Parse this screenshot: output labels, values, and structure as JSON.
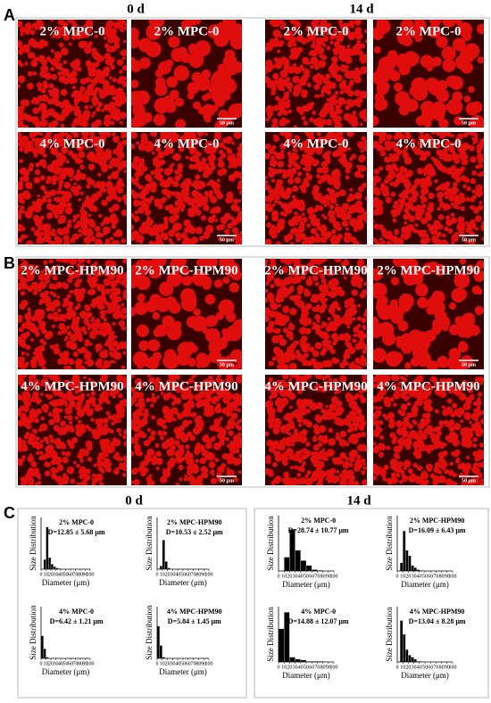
{
  "time_labels": [
    "0 d",
    "14 d"
  ],
  "panels": [
    {
      "letter": "A",
      "images": [
        {
          "label": "2% MPC-0"
        },
        {
          "label": "2% MPC-0",
          "scale": "50 μm"
        },
        {
          "label": "2% MPC-0"
        },
        {
          "label": "2% MPC-0",
          "scale": "50 μm"
        },
        {
          "label": "4% MPC-0"
        },
        {
          "label": "4% MPC-0",
          "scale": "50 μm"
        },
        {
          "label": "4% MPC-0"
        },
        {
          "label": "4% MPC-0",
          "scale": "50 μm"
        }
      ]
    },
    {
      "letter": "B",
      "images": [
        {
          "label": "2% MPC-HPM90"
        },
        {
          "label": "2% MPC-HPM90",
          "scale": "50 μm"
        },
        {
          "label": "2% MPC-HPM90"
        },
        {
          "label": "2% MPC-HPM90",
          "scale": "50 μm"
        },
        {
          "label": "4% MPC-HPM90"
        },
        {
          "label": "4% MPC-HPM90",
          "scale": "50 μm"
        },
        {
          "label": "4% MPC-HPM90"
        },
        {
          "label": "4% MPC-HPM90",
          "scale": "50 μm"
        }
      ]
    },
    {
      "letter": "C"
    }
  ],
  "chart_data": [
    {
      "type": "histogram",
      "title": "2% MPC-0",
      "annotation": "D=12.85 ± 5.68 μm",
      "x_label": "Diameter (μm)",
      "y_label": "Size Distribution",
      "bins": [
        0,
        5,
        10,
        15,
        20,
        25,
        30,
        35,
        40,
        45,
        50,
        55,
        60,
        65,
        70,
        75,
        80,
        85,
        90,
        95,
        100
      ],
      "values": [
        0,
        0.15,
        0.65,
        0.18,
        0.08,
        0.04,
        0.02,
        0.01,
        0,
        0,
        0,
        0,
        0,
        0,
        0,
        0,
        0,
        0,
        0,
        0
      ],
      "xlim": [
        0,
        100
      ],
      "ylim": [
        0,
        0.8
      ],
      "xticks": [
        0,
        10,
        20,
        30,
        40,
        50,
        60,
        70,
        80,
        90,
        100
      ],
      "color": "#000000"
    },
    {
      "type": "histogram",
      "title": "2% MPC-HPM90",
      "annotation": "D=10.53 ± 2.52 μm",
      "x_label": "Diameter (μm)",
      "y_label": "Size Distribution",
      "bins": [
        0,
        5,
        10,
        15,
        20,
        25,
        30,
        35,
        40,
        45,
        50,
        55,
        60,
        65,
        70,
        75,
        80,
        85,
        90,
        95,
        100
      ],
      "values": [
        0,
        0.05,
        0.45,
        0.12,
        0.02,
        0,
        0,
        0,
        0,
        0,
        0,
        0,
        0,
        0,
        0,
        0,
        0,
        0,
        0,
        0
      ],
      "xlim": [
        0,
        100
      ],
      "ylim": [
        0,
        0.8
      ],
      "xticks": [
        0,
        10,
        20,
        30,
        40,
        50,
        60,
        70,
        80,
        90,
        100
      ],
      "color": "#000000"
    },
    {
      "type": "histogram",
      "title": "4% MPC-0",
      "annotation": "D=6.42 ± 1.21 μm",
      "x_label": "Diameter (μm)",
      "y_label": "Size Distribution",
      "bins": [
        0,
        5,
        10,
        15,
        20,
        25,
        30,
        35,
        40,
        45,
        50,
        55,
        60,
        65,
        70,
        75,
        80,
        85,
        90,
        95,
        100
      ],
      "values": [
        0.35,
        0.15,
        0.02,
        0,
        0,
        0,
        0,
        0,
        0,
        0,
        0,
        0,
        0,
        0,
        0,
        0,
        0,
        0,
        0,
        0
      ],
      "xlim": [
        0,
        100
      ],
      "ylim": [
        0,
        0.8
      ],
      "xticks": [
        0,
        10,
        20,
        30,
        40,
        50,
        60,
        70,
        80,
        90,
        100
      ],
      "color": "#000000"
    },
    {
      "type": "histogram",
      "title": "4% MPC-HPM90",
      "annotation": "D=5.84 ± 1.45 μm",
      "x_label": "Diameter (μm)",
      "y_label": "Size Distribution",
      "bins": [
        0,
        5,
        10,
        15,
        20,
        25,
        30,
        35,
        40,
        45,
        50,
        55,
        60,
        65,
        70,
        75,
        80,
        85,
        90,
        95,
        100
      ],
      "values": [
        0.5,
        0.2,
        0.02,
        0,
        0,
        0,
        0,
        0,
        0,
        0,
        0,
        0,
        0,
        0,
        0,
        0,
        0,
        0,
        0,
        0
      ],
      "xlim": [
        0,
        100
      ],
      "ylim": [
        0,
        0.8
      ],
      "xticks": [
        0,
        10,
        20,
        30,
        40,
        50,
        60,
        70,
        80,
        90,
        100
      ],
      "color": "#000000"
    },
    {
      "type": "histogram",
      "title": "2% MPC-0",
      "annotation": "D=28.74 ± 10.77 μm",
      "x_label": "Diameter (μm)",
      "y_label": "Size Distribution",
      "bins": [
        0,
        10,
        20,
        30,
        40,
        50,
        60,
        70,
        80,
        90,
        100
      ],
      "values": [
        0,
        0.2,
        0.6,
        0.3,
        0.15,
        0.08,
        0.02,
        0.01,
        0,
        0
      ],
      "xlim": [
        0,
        100
      ],
      "ylim": [
        0,
        0.8
      ],
      "xticks": [
        0,
        10,
        20,
        30,
        40,
        50,
        60,
        70,
        80,
        90,
        100
      ],
      "color": "#000000"
    },
    {
      "type": "histogram",
      "title": "2% MPC-HPM90",
      "annotation": "D=16.09 ± 6.43 μm",
      "x_label": "Diameter (μm)",
      "y_label": "Size Distribution",
      "bins": [
        0,
        5,
        10,
        15,
        20,
        25,
        30,
        35,
        40,
        45,
        50,
        55,
        60,
        65,
        70,
        75,
        80,
        85,
        90,
        95,
        100
      ],
      "values": [
        0,
        0.12,
        0.58,
        0.3,
        0.22,
        0.08,
        0.05,
        0.02,
        0.01,
        0,
        0,
        0,
        0,
        0,
        0,
        0,
        0,
        0,
        0,
        0
      ],
      "xlim": [
        0,
        100
      ],
      "ylim": [
        0,
        0.8
      ],
      "xticks": [
        0,
        10,
        20,
        30,
        40,
        50,
        60,
        70,
        80,
        90,
        100
      ],
      "color": "#000000"
    },
    {
      "type": "histogram",
      "title": "4% MPC-0",
      "annotation": "D=14.88 ± 12.07 μm",
      "x_label": "Diameter (μm)",
      "y_label": "Size Distribution",
      "bins": [
        0,
        10,
        20,
        30,
        40,
        50,
        60,
        70,
        80,
        90,
        100
      ],
      "values": [
        0.48,
        0.72,
        0.07,
        0.04,
        0.03,
        0.01,
        0.01,
        0.01,
        0,
        0
      ],
      "xlim": [
        0,
        100
      ],
      "ylim": [
        0,
        0.8
      ],
      "xticks": [
        0,
        10,
        20,
        30,
        40,
        50,
        60,
        70,
        80,
        90,
        100
      ],
      "color": "#000000"
    },
    {
      "type": "histogram",
      "title": "4% MPC-HPM90",
      "annotation": "D=13.04 ± 8.28 μm",
      "x_label": "Diameter (μm)",
      "y_label": "Size Distribution",
      "bins": [
        0,
        5,
        10,
        15,
        20,
        25,
        30,
        35,
        40,
        45,
        50,
        55,
        60,
        65,
        70,
        75,
        80,
        85,
        90,
        95,
        100
      ],
      "values": [
        0,
        0.6,
        0.4,
        0.18,
        0.1,
        0.07,
        0.04,
        0.01,
        0.01,
        0,
        0,
        0,
        0,
        0,
        0,
        0,
        0,
        0,
        0,
        0
      ],
      "xlim": [
        0,
        100
      ],
      "ylim": [
        0,
        0.8
      ],
      "xticks": [
        0,
        10,
        20,
        30,
        40,
        50,
        60,
        70,
        80,
        90,
        100
      ],
      "color": "#000000"
    }
  ]
}
